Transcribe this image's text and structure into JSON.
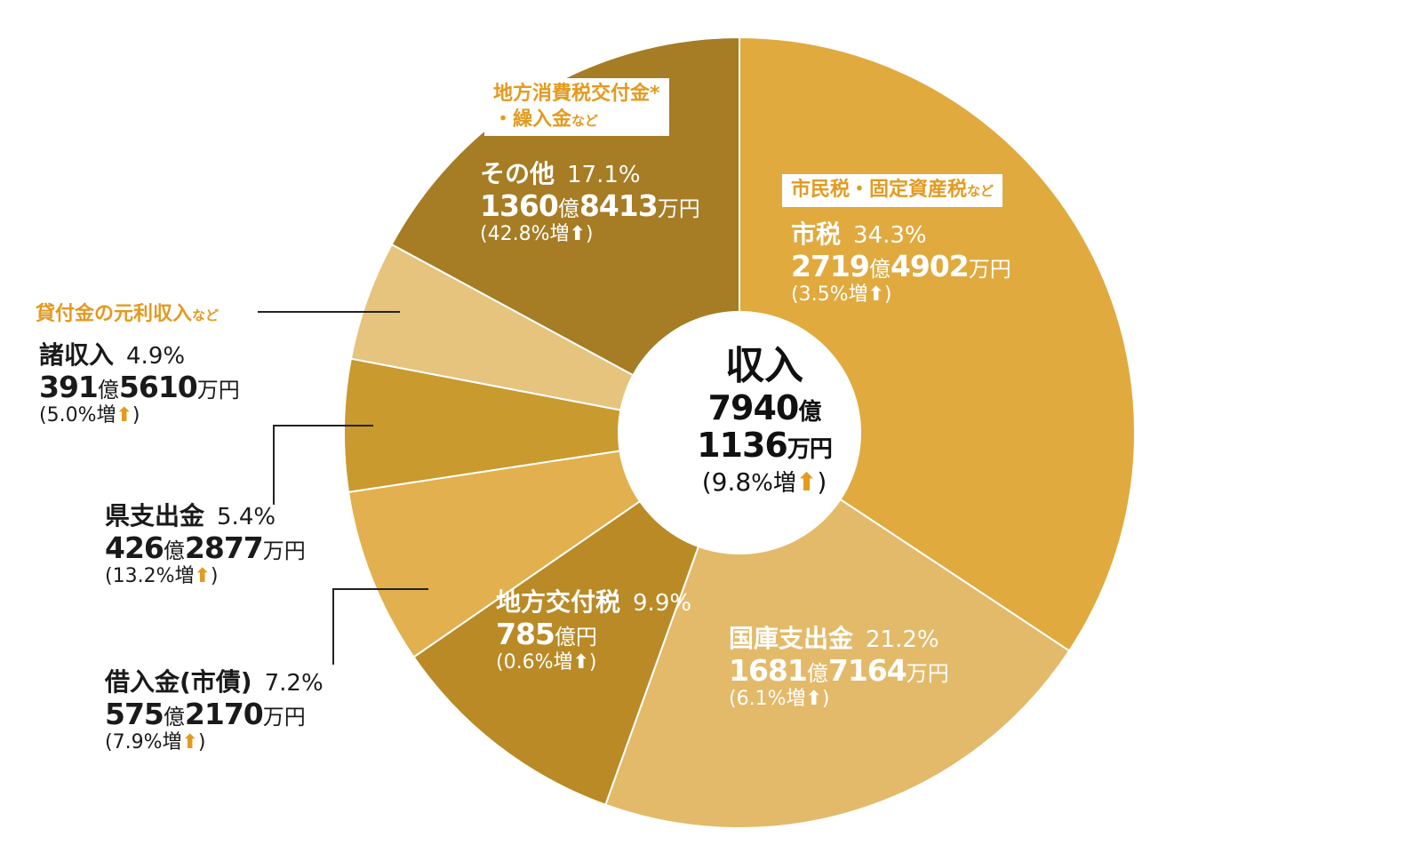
{
  "chart_data": {
    "type": "pie",
    "title": "収入",
    "total": {
      "amount_line1": "7940",
      "unit1": "億",
      "amount_line2": "1136",
      "unit2": "万円",
      "change": "(9.8",
      "change_unit": "%増",
      "change_close": ")"
    },
    "slices": [
      {
        "name": "市税",
        "percent": 34.3,
        "percent_label": "34.3%",
        "amount_oku": "2719",
        "amount_man": "4902",
        "change": "(3.5%増",
        "color": "#e0aa3e",
        "note": "市民税・固定資産税",
        "note_suffix": "など"
      },
      {
        "name": "国庫支出金",
        "percent": 21.2,
        "percent_label": "21.2%",
        "amount_oku": "1681",
        "amount_man": "7164",
        "change": "(6.1%増",
        "color": "#e3ba6a",
        "note": "",
        "note_suffix": ""
      },
      {
        "name": "地方交付税",
        "percent": 9.9,
        "percent_label": "9.9%",
        "amount_oku": "785",
        "amount_man": "",
        "change": "(0.6%増",
        "color": "#b98a26",
        "note": "",
        "note_suffix": ""
      },
      {
        "name": "借入金(市債)",
        "percent": 7.2,
        "percent_label": "7.2%",
        "amount_oku": "575",
        "amount_man": "2170",
        "change": "(7.9%増",
        "color": "#e2b04e",
        "note": "",
        "note_suffix": ""
      },
      {
        "name": "県支出金",
        "percent": 5.4,
        "percent_label": "5.4%",
        "amount_oku": "426",
        "amount_man": "2877",
        "change": "(13.2%増",
        "color": "#c99a2e",
        "note": "",
        "note_suffix": ""
      },
      {
        "name": "諸収入",
        "percent": 4.9,
        "percent_label": "4.9%",
        "amount_oku": "391",
        "amount_man": "5610",
        "change": "(5.0%増",
        "color": "#e6c47e",
        "note": "貸付金の元利収入",
        "note_suffix": "など"
      },
      {
        "name": "その他",
        "percent": 17.1,
        "percent_label": "17.1%",
        "amount_oku": "1360",
        "amount_man": "8413",
        "change": "(42.8%増",
        "color": "#a67c24",
        "note": "地方消費税交付金*",
        "note_line2": "・繰入金",
        "note_suffix": "など"
      }
    ],
    "units": {
      "oku": "億",
      "man_yen": "万円",
      "yen": "円",
      "arrow": "⬆",
      "close": ")"
    }
  }
}
